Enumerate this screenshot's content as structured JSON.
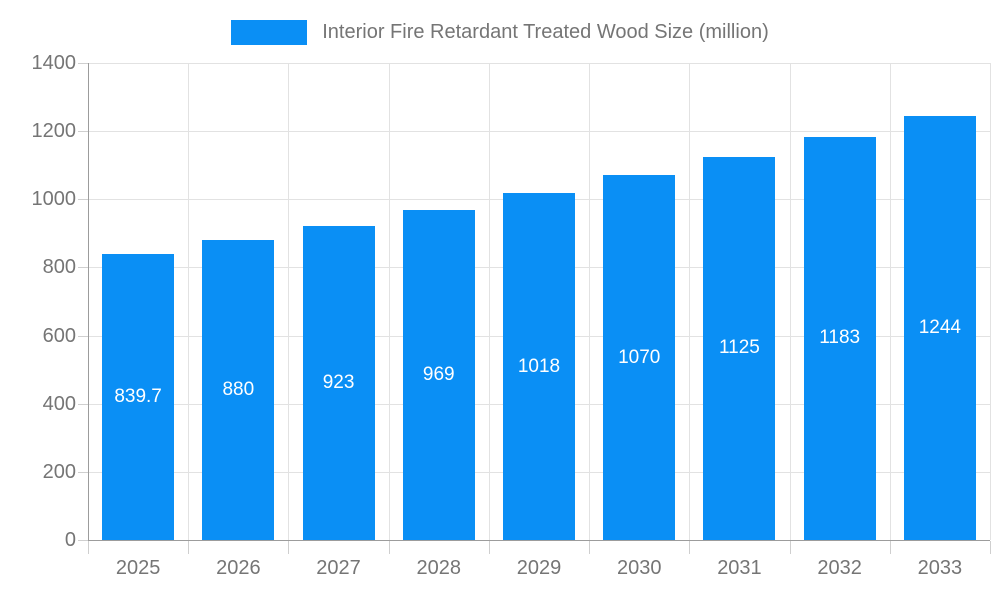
{
  "chart": {
    "legend_label": "Interior Fire Retardant Treated Wood Size (million)",
    "colors": {
      "bar": "#0A8FF5",
      "axis_text": "#757575",
      "bar_label_text": "#FFFFFF",
      "grid_line": "#E2E2E2",
      "axis_line": "#9C9C9C",
      "tick_line": "#CFCFCF",
      "background": "#FFFFFF"
    }
  },
  "chart_data": {
    "type": "bar",
    "title": "Interior Fire Retardant Treated Wood Size (million)",
    "legend": [
      "Interior Fire Retardant Treated Wood Size (million)"
    ],
    "legend_position": "top",
    "categories": [
      "2025",
      "2026",
      "2027",
      "2028",
      "2029",
      "2030",
      "2031",
      "2032",
      "2033"
    ],
    "values": [
      839.7,
      880,
      923,
      969,
      1018,
      1070,
      1125,
      1183,
      1244
    ],
    "bar_labels": [
      "839.7",
      "880",
      "923",
      "969",
      "1018",
      "1070",
      "1125",
      "1183",
      "1244"
    ],
    "xlabel": "",
    "ylabel": "",
    "ylim": [
      0,
      1400
    ],
    "yticks": [
      0,
      200,
      400,
      600,
      800,
      1000,
      1200,
      1400
    ],
    "ytick_labels": [
      "0",
      "200",
      "400",
      "600",
      "800",
      "1000",
      "1200",
      "1400"
    ],
    "grid": true
  }
}
